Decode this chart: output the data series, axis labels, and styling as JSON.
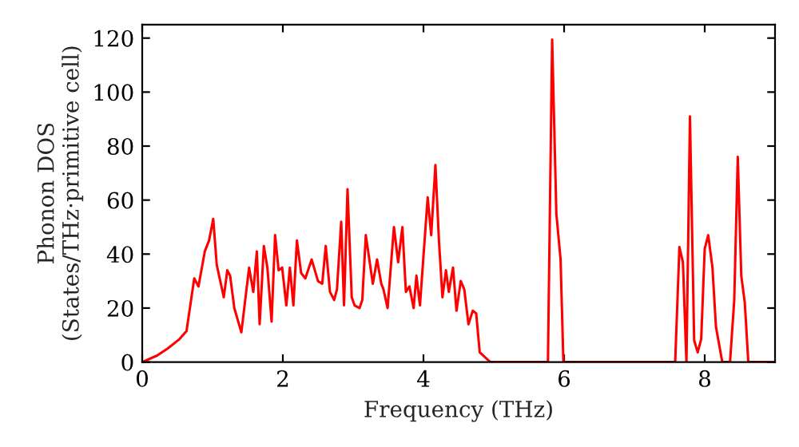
{
  "chart_data": {
    "type": "line",
    "xlabel": "Frequency (THz)",
    "ylabel": "Phonon DOS\n(States/THz·primitive cell)",
    "xlim": [
      0,
      9
    ],
    "ylim": [
      0,
      125
    ],
    "xticks": [
      0,
      2,
      4,
      6,
      8
    ],
    "yticks": [
      0,
      20,
      40,
      60,
      80,
      100,
      120
    ],
    "grid": false,
    "marker": "none",
    "line_style": "solid",
    "series": [
      {
        "color": "#ff0000",
        "x": [
          0,
          0.21,
          0.36,
          0.53,
          0.63,
          0.74,
          0.8,
          0.89,
          0.95,
          1.01,
          1.06,
          1.16,
          1.21,
          1.25,
          1.31,
          1.41,
          1.52,
          1.58,
          1.63,
          1.67,
          1.73,
          1.78,
          1.84,
          1.89,
          1.94,
          1.99,
          2.05,
          2.1,
          2.15,
          2.2,
          2.26,
          2.32,
          2.41,
          2.5,
          2.56,
          2.61,
          2.67,
          2.73,
          2.77,
          2.83,
          2.87,
          2.92,
          2.98,
          3.02,
          3.09,
          3.13,
          3.18,
          3.28,
          3.34,
          3.4,
          3.43,
          3.49,
          3.58,
          3.64,
          3.7,
          3.75,
          3.8,
          3.86,
          3.9,
          3.95,
          4.06,
          4.11,
          4.17,
          4.22,
          4.27,
          4.32,
          4.36,
          4.42,
          4.47,
          4.53,
          4.58,
          4.64,
          4.7,
          4.75,
          4.8,
          4.95,
          5.77,
          5.83,
          5.89,
          5.95,
          5.99,
          7.58,
          7.64,
          7.69,
          7.74,
          7.79,
          7.85,
          7.9,
          7.95,
          8.0,
          8.05,
          8.11,
          8.16,
          8.25,
          8.36,
          8.42,
          8.47,
          8.52,
          8.57,
          8.62,
          9.0
        ],
        "values": [
          0,
          2.4,
          5,
          8.5,
          11.5,
          31,
          28,
          41,
          45,
          53,
          36,
          24,
          34,
          32,
          20,
          11,
          35,
          26,
          41,
          14,
          43,
          35,
          15,
          47,
          34,
          35,
          21,
          35,
          21,
          45,
          33,
          31,
          38,
          30,
          29,
          43,
          26,
          23,
          27,
          52,
          21,
          64,
          24,
          21,
          20,
          23,
          47,
          29,
          38,
          29,
          27,
          20,
          50,
          37,
          50,
          26,
          28,
          20,
          32,
          21,
          61,
          47,
          73,
          45,
          24,
          34,
          26,
          35,
          19,
          30,
          27,
          14,
          19,
          18,
          3.6,
          0,
          0,
          119.5,
          55,
          38,
          0,
          0,
          42.6,
          37,
          0,
          91,
          8,
          3.6,
          8.5,
          42,
          47,
          35,
          13,
          0,
          0,
          23,
          76,
          32,
          22,
          0,
          0
        ]
      }
    ]
  }
}
